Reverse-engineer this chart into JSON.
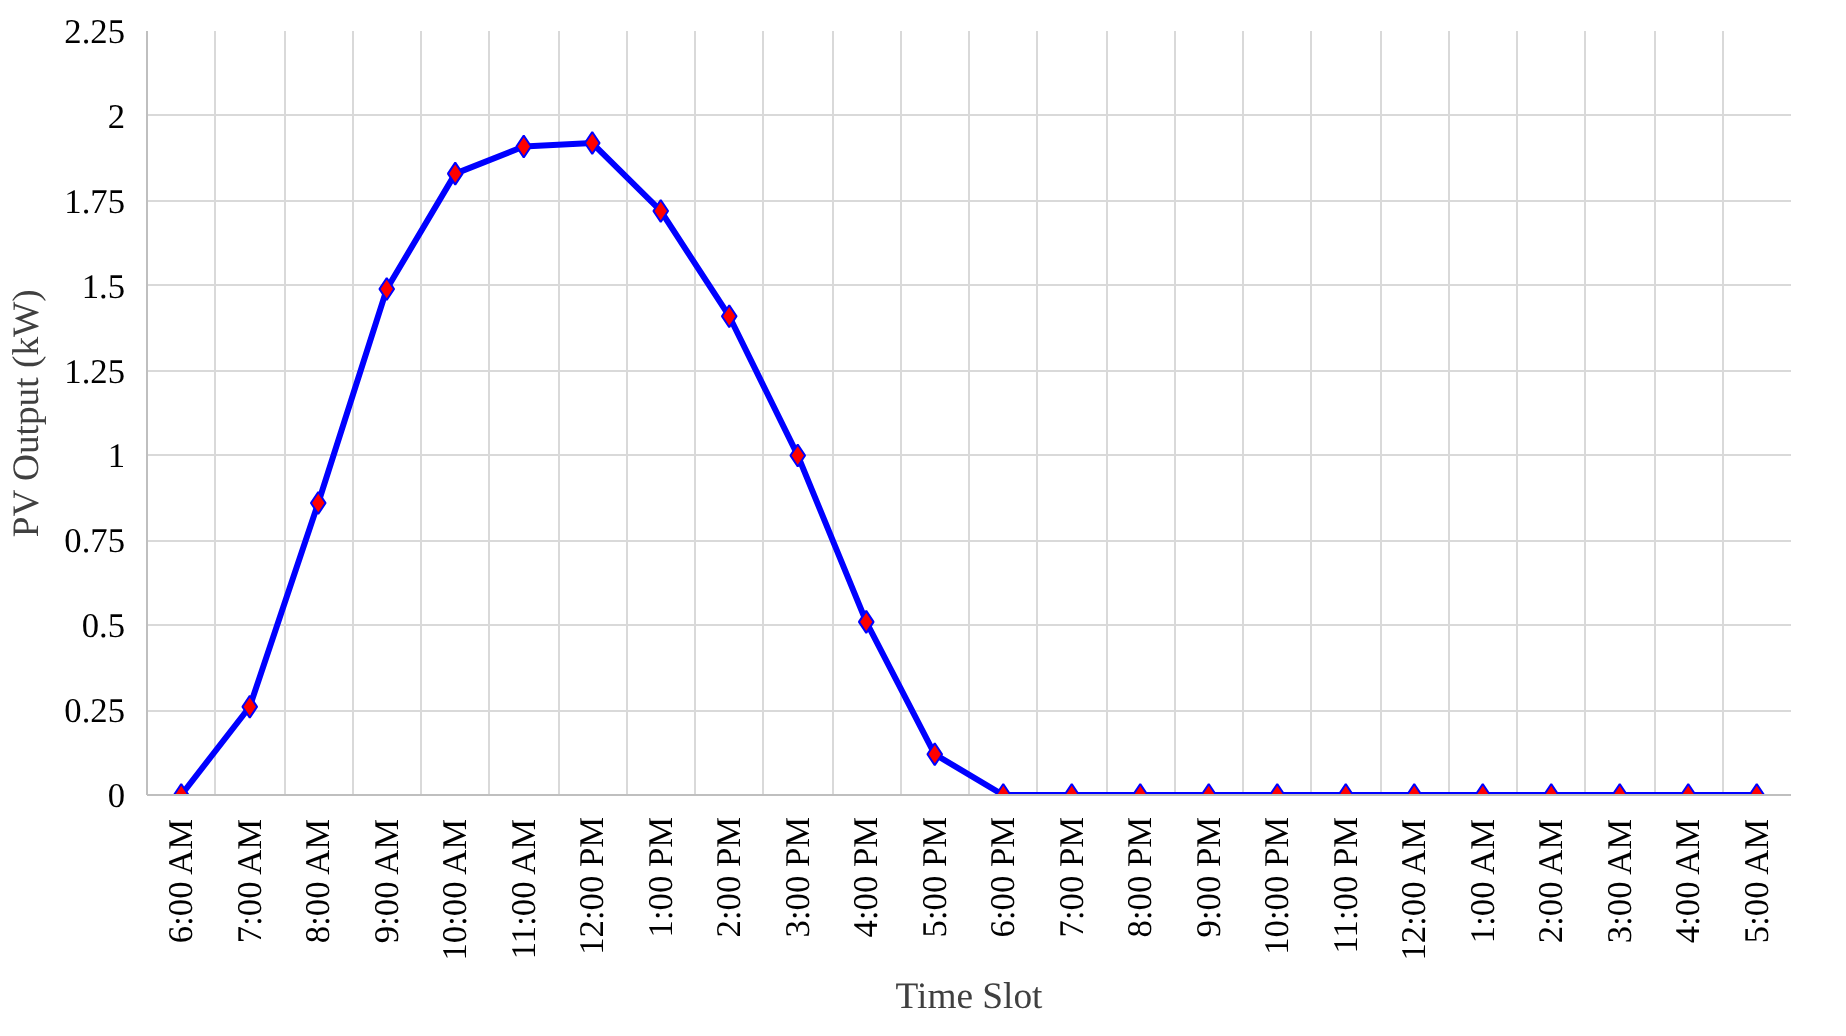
{
  "chart_data": {
    "type": "line",
    "xlabel": "Time Slot",
    "ylabel": "PV Output (kW)",
    "categories": [
      "6:00 AM",
      "7:00 AM",
      "8:00 AM",
      "9:00 AM",
      "10:00 AM",
      "11:00 AM",
      "12:00 PM",
      "1:00 PM",
      "2:00 PM",
      "3:00 PM",
      "4:00 PM",
      "5:00 PM",
      "6:00 PM",
      "7:00 PM",
      "8:00 PM",
      "9:00 PM",
      "10:00 PM",
      "11:00 PM",
      "12:00 AM",
      "1:00 AM",
      "2:00 AM",
      "3:00 AM",
      "4:00 AM",
      "5:00 AM"
    ],
    "series": [
      {
        "color": "#0000ff",
        "colors": [
          "#ff0000",
          "#ff0000",
          "#ff0000",
          "#ff0000",
          "#ff0000",
          "#ff0000",
          "#ff0000",
          "#ff0000",
          "#ff0000",
          "#ff0000",
          "#ff0000",
          "#ff0000",
          "#ff0000",
          "#ff0000",
          "#ff0000",
          "#ff0000",
          "#ff0000",
          "#ff0000",
          "#ff0000",
          "#ff0000",
          "#ff0000",
          "#ff0000",
          "#ff0000",
          "#ff0000"
        ],
        "values": [
          0,
          0.26,
          0.86,
          1.49,
          1.83,
          1.91,
          1.92,
          1.72,
          1.41,
          1.0,
          0.51,
          0.12,
          0,
          0,
          0,
          0,
          0,
          0,
          0,
          0,
          0,
          0,
          0,
          0
        ]
      }
    ],
    "ylim": [
      0,
      2.25
    ],
    "yticks": [
      0,
      0.25,
      0.5,
      0.75,
      1,
      1.25,
      1.5,
      1.75,
      2,
      2.25
    ],
    "grid": true,
    "marker": "diamond",
    "line_style": "solid"
  }
}
